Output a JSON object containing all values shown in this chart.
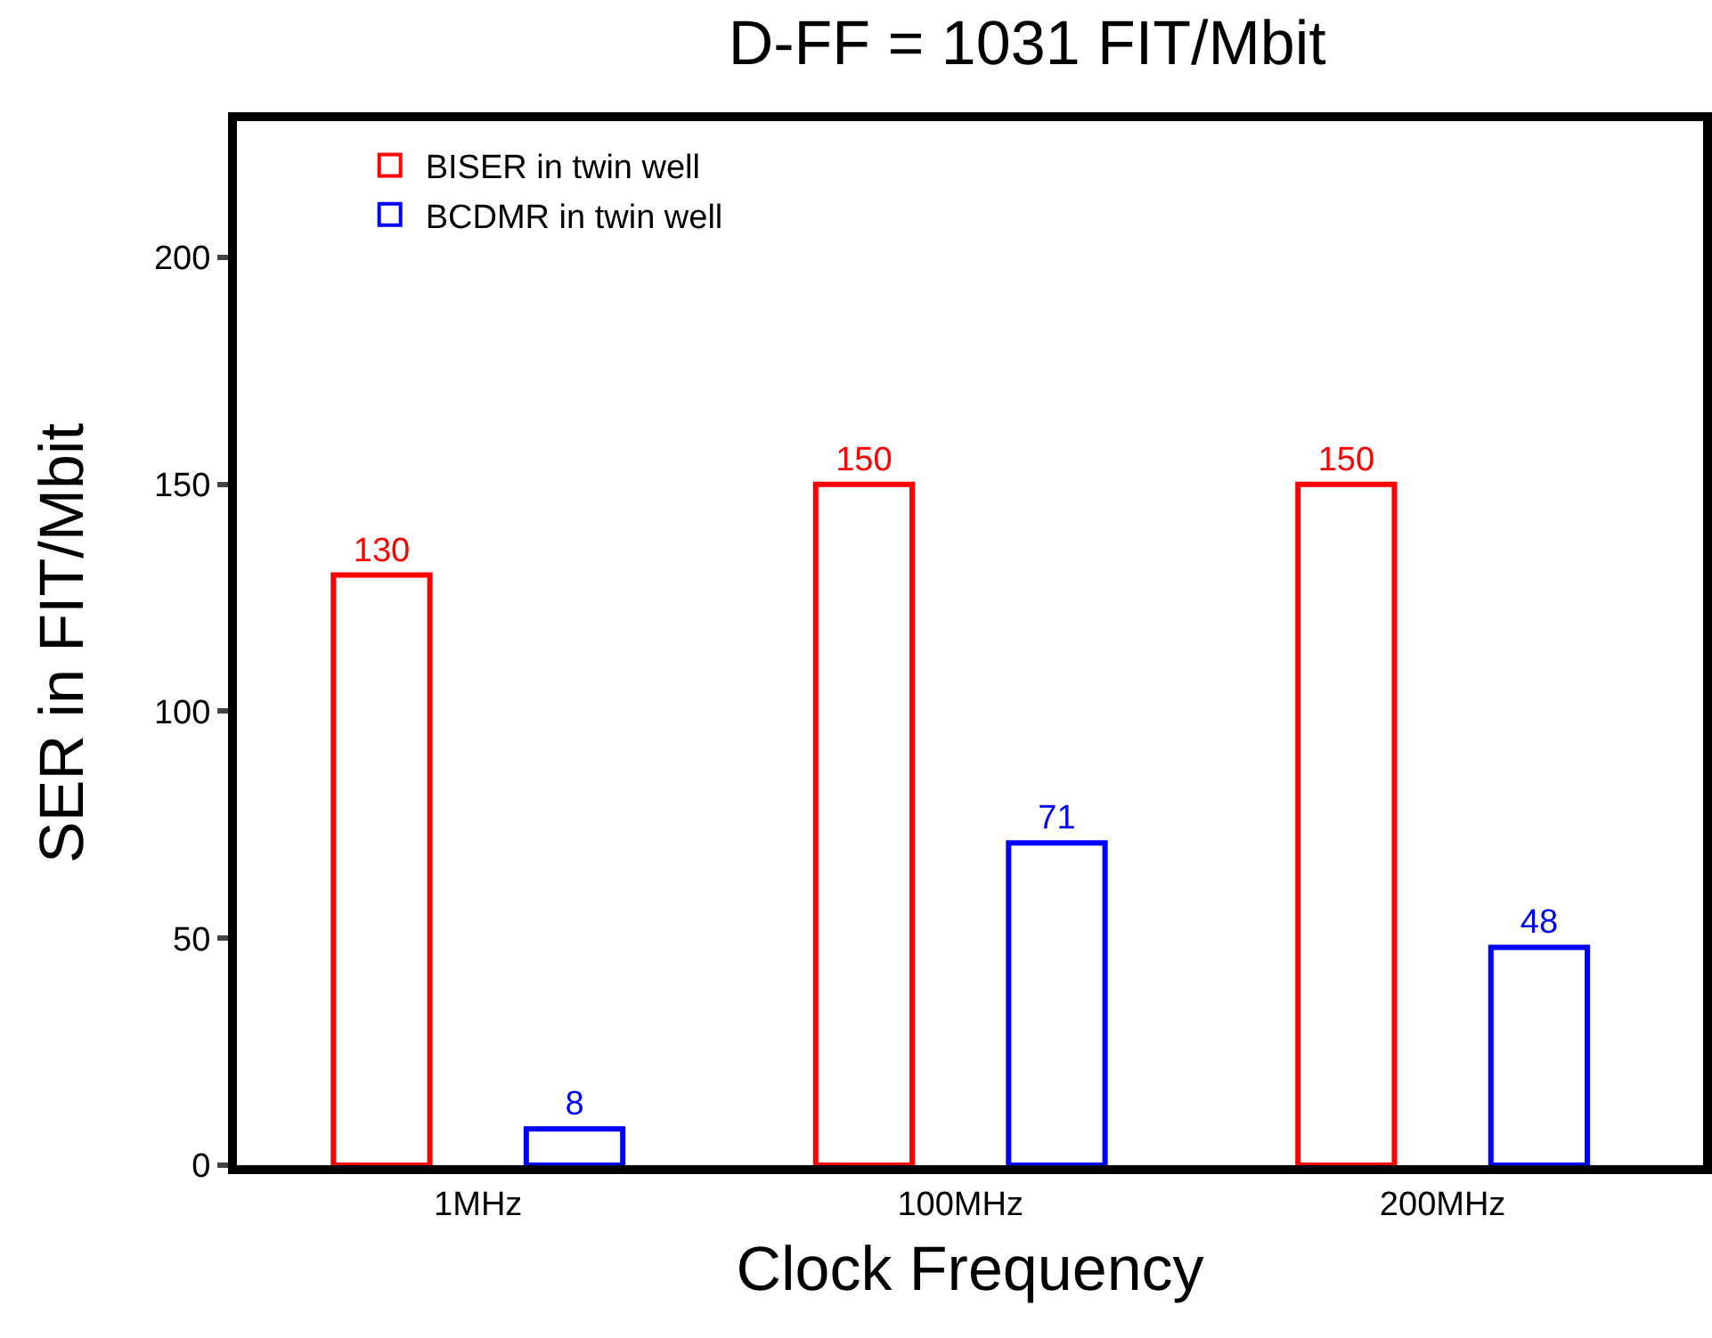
{
  "chart_data": {
    "type": "bar",
    "title": "D-FF = 1031 FIT/Mbit",
    "xlabel": "Clock Frequency",
    "ylabel": "SER in FIT/Mbit",
    "categories": [
      "1MHz",
      "100MHz",
      "200MHz"
    ],
    "series": [
      {
        "name": "BISER in twin well",
        "color": "#ff0000",
        "values": [
          130,
          150,
          150
        ]
      },
      {
        "name": "BCDMR in twin well",
        "color": "#0000ff",
        "values": [
          8,
          71,
          48
        ]
      }
    ],
    "ylim": [
      0,
      230
    ],
    "yticks": [
      0,
      50,
      100,
      150,
      200
    ],
    "data_labels": true,
    "legend": "top left"
  }
}
